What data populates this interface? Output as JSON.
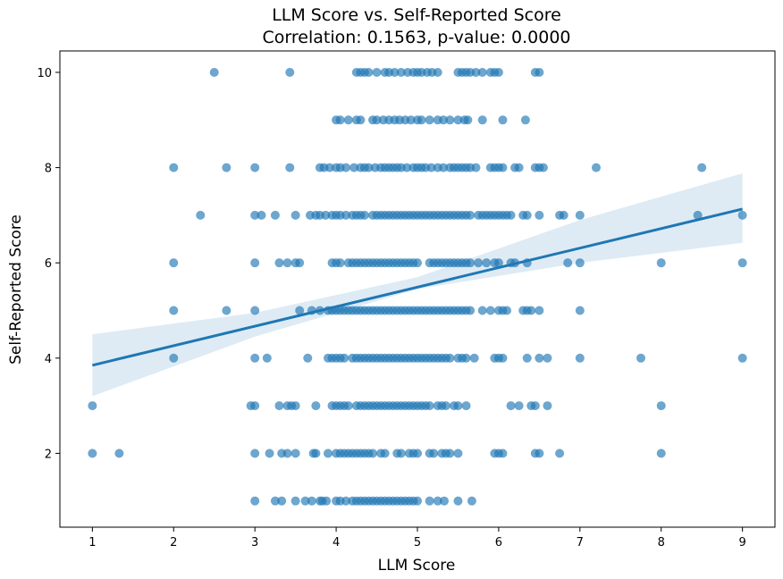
{
  "chart_data": {
    "type": "scatter",
    "title": "LLM Score vs. Self-Reported Score",
    "subtitle": "Correlation: 0.1563, p-value: 0.0000",
    "xlabel": "LLM Score",
    "ylabel": "Self-Reported Score",
    "xlim": [
      0.6,
      9.4
    ],
    "ylim": [
      0.45,
      10.45
    ],
    "xticks": [
      "1",
      "2",
      "3",
      "4",
      "5",
      "6",
      "7",
      "8",
      "9"
    ],
    "yticks": [
      "2",
      "4",
      "6",
      "8",
      "10"
    ],
    "grid": false,
    "point_color": "#1f77b4",
    "regression": {
      "x_start": 1,
      "y_start": 3.85,
      "x_end": 9,
      "y_end": 7.13,
      "ci_lower": [
        [
          1,
          3.2
        ],
        [
          3,
          4.45
        ],
        [
          5,
          5.45
        ],
        [
          7,
          6.0
        ],
        [
          9,
          6.42
        ]
      ],
      "ci_upper": [
        [
          1,
          4.5
        ],
        [
          3,
          4.95
        ],
        [
          5,
          5.7
        ],
        [
          7,
          6.9
        ],
        [
          9,
          7.88
        ]
      ]
    },
    "points_by_y": [
      {
        "y": 10,
        "x": [
          2.5,
          3.43,
          4.25,
          4.3,
          4.35,
          4.4,
          4.5,
          4.6,
          4.65,
          4.72,
          4.8,
          4.88,
          4.95,
          5.0,
          5.05,
          5.12,
          5.18,
          5.25,
          5.5,
          5.55,
          5.6,
          5.65,
          5.72,
          5.8,
          5.9,
          5.95,
          6.0,
          6.45,
          6.5
        ]
      },
      {
        "y": 9,
        "x": [
          4.0,
          4.05,
          4.15,
          4.25,
          4.3,
          4.45,
          4.5,
          4.58,
          4.65,
          4.72,
          4.78,
          4.85,
          4.92,
          5.0,
          5.05,
          5.15,
          5.25,
          5.32,
          5.4,
          5.5,
          5.58,
          5.62,
          5.8,
          6.05,
          6.33
        ]
      },
      {
        "y": 8,
        "x": [
          2.0,
          2.65,
          3.0,
          3.43,
          3.8,
          3.85,
          3.92,
          4.0,
          4.05,
          4.12,
          4.22,
          4.3,
          4.35,
          4.4,
          4.48,
          4.55,
          4.6,
          4.65,
          4.7,
          4.75,
          4.8,
          4.87,
          4.95,
          5.0,
          5.05,
          5.1,
          5.17,
          5.25,
          5.32,
          5.4,
          5.45,
          5.5,
          5.55,
          5.6,
          5.65,
          5.72,
          5.9,
          5.95,
          6.0,
          6.05,
          6.2,
          6.25,
          6.45,
          6.5,
          6.55,
          7.2,
          8.5
        ]
      },
      {
        "y": 7,
        "x": [
          2.33,
          3.0,
          3.08,
          3.25,
          3.5,
          3.68,
          3.75,
          3.8,
          3.87,
          3.95,
          4.0,
          4.05,
          4.12,
          4.2,
          4.25,
          4.3,
          4.35,
          4.45,
          4.5,
          4.55,
          4.6,
          4.65,
          4.7,
          4.75,
          4.8,
          4.85,
          4.9,
          4.95,
          5.0,
          5.05,
          5.1,
          5.15,
          5.2,
          5.25,
          5.3,
          5.35,
          5.4,
          5.45,
          5.5,
          5.55,
          5.6,
          5.65,
          5.75,
          5.8,
          5.85,
          5.9,
          5.95,
          6.0,
          6.05,
          6.1,
          6.15,
          6.3,
          6.35,
          6.5,
          6.75,
          6.8,
          7.0,
          8.45,
          9.0
        ]
      },
      {
        "y": 6,
        "x": [
          2.0,
          3.0,
          3.3,
          3.4,
          3.5,
          3.55,
          3.95,
          4.0,
          4.05,
          4.15,
          4.2,
          4.25,
          4.3,
          4.35,
          4.4,
          4.45,
          4.5,
          4.55,
          4.6,
          4.65,
          4.7,
          4.75,
          4.8,
          4.85,
          4.9,
          4.95,
          5.0,
          5.15,
          5.2,
          5.25,
          5.3,
          5.35,
          5.4,
          5.45,
          5.5,
          5.55,
          5.6,
          5.65,
          5.75,
          5.85,
          5.95,
          6.0,
          6.15,
          6.2,
          6.35,
          6.85,
          7.0,
          8.0,
          9.0
        ]
      },
      {
        "y": 5,
        "x": [
          2.0,
          2.65,
          3.0,
          3.55,
          3.7,
          3.8,
          3.9,
          3.95,
          4.0,
          4.05,
          4.1,
          4.15,
          4.2,
          4.25,
          4.3,
          4.35,
          4.4,
          4.45,
          4.5,
          4.55,
          4.6,
          4.65,
          4.7,
          4.75,
          4.8,
          4.85,
          4.9,
          4.95,
          5.0,
          5.05,
          5.1,
          5.15,
          5.2,
          5.25,
          5.3,
          5.35,
          5.4,
          5.45,
          5.5,
          5.55,
          5.6,
          5.65,
          5.8,
          5.9,
          6.0,
          6.05,
          6.1,
          6.3,
          6.35,
          6.4,
          6.5,
          7.0
        ]
      },
      {
        "y": 4,
        "x": [
          2.0,
          3.0,
          3.15,
          3.65,
          3.9,
          3.95,
          4.0,
          4.05,
          4.1,
          4.2,
          4.25,
          4.3,
          4.35,
          4.4,
          4.45,
          4.5,
          4.55,
          4.6,
          4.65,
          4.7,
          4.75,
          4.8,
          4.85,
          4.9,
          4.95,
          5.0,
          5.05,
          5.1,
          5.15,
          5.2,
          5.25,
          5.3,
          5.35,
          5.4,
          5.5,
          5.55,
          5.6,
          5.7,
          5.95,
          6.0,
          6.05,
          6.35,
          6.5,
          6.6,
          7.0,
          7.75,
          9.0
        ]
      },
      {
        "y": 3,
        "x": [
          1.0,
          2.95,
          3.0,
          3.3,
          3.4,
          3.45,
          3.5,
          3.75,
          3.95,
          4.0,
          4.05,
          4.1,
          4.15,
          4.25,
          4.3,
          4.35,
          4.4,
          4.45,
          4.5,
          4.55,
          4.6,
          4.65,
          4.7,
          4.75,
          4.8,
          4.85,
          4.9,
          4.95,
          5.0,
          5.05,
          5.1,
          5.15,
          5.25,
          5.3,
          5.35,
          5.45,
          5.5,
          5.6,
          6.15,
          6.25,
          6.4,
          6.45,
          6.6,
          8.0
        ]
      },
      {
        "y": 2,
        "x": [
          1.0,
          1.33,
          3.0,
          3.18,
          3.33,
          3.4,
          3.5,
          3.72,
          3.75,
          3.9,
          4.0,
          4.05,
          4.1,
          4.15,
          4.2,
          4.25,
          4.3,
          4.35,
          4.4,
          4.45,
          4.55,
          4.6,
          4.75,
          4.8,
          4.9,
          4.95,
          5.0,
          5.15,
          5.2,
          5.3,
          5.35,
          5.4,
          5.5,
          5.95,
          6.0,
          6.05,
          6.45,
          6.5,
          6.75,
          8.0
        ]
      },
      {
        "y": 1,
        "x": [
          3.0,
          3.25,
          3.33,
          3.5,
          3.62,
          3.7,
          3.8,
          3.83,
          3.88,
          4.0,
          4.05,
          4.12,
          4.2,
          4.25,
          4.3,
          4.35,
          4.4,
          4.45,
          4.5,
          4.55,
          4.6,
          4.65,
          4.7,
          4.75,
          4.8,
          4.85,
          4.9,
          4.95,
          5.0,
          5.15,
          5.25,
          5.33,
          5.5,
          5.67
        ]
      }
    ]
  }
}
